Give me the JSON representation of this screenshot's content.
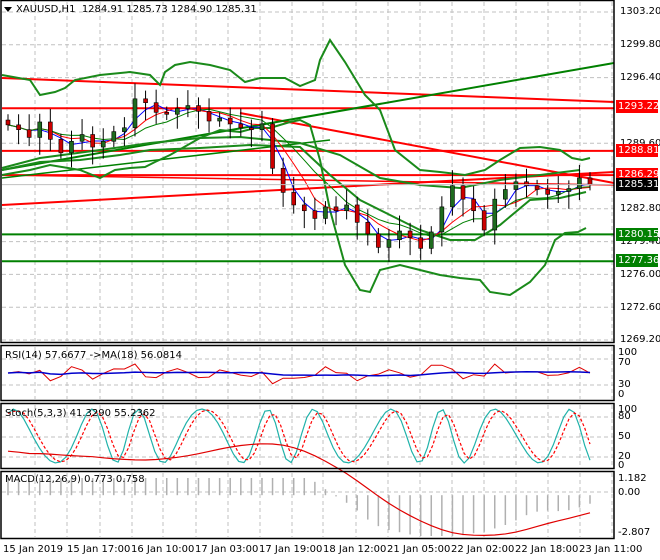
{
  "header": {
    "symbol": "XAUUSD,H1",
    "ohlc": "1284.91 1285.73 1284.90 1285.31",
    "dropdown_icon": "triangle-down-icon"
  },
  "colors": {
    "background": "#ffffff",
    "grid": "#c0c0c0",
    "bull_candle": "#1e6b1e",
    "bear_candle": "#cc0000",
    "resistance": "#ff0000",
    "support": "#008000",
    "bollinger": "#1a8a1a",
    "ma_fast": "#0000ff",
    "ma_mid": "#ff0000",
    "ma_slow": "#008000",
    "rsi_line": "#e00000",
    "rsi_ma": "#0000cc",
    "stoch_main": "#20b2aa",
    "stoch_signal": "#ff0000",
    "macd_hist": "#b0b0b0",
    "macd_signal": "#e00000"
  },
  "price_axis": {
    "labels": [
      "1303.20",
      "1299.80",
      "1296.40",
      "1289.60",
      "1282.80",
      "1279.40",
      "1276.00",
      "1272.60",
      "1269.20"
    ]
  },
  "price_boxes": [
    {
      "label": "1293.22",
      "color": "#ff0000",
      "name": "resistance-1293"
    },
    {
      "label": "1288.81",
      "color": "#ff0000",
      "name": "resistance-1288"
    },
    {
      "label": "1286.29",
      "color": "#ff0000",
      "name": "resistance-1286"
    },
    {
      "label": "1285.31",
      "color": "#000000",
      "name": "current-price"
    },
    {
      "label": "1280.15",
      "color": "#008000",
      "name": "support-1280"
    },
    {
      "label": "1277.36",
      "color": "#008000",
      "name": "support-1277"
    }
  ],
  "rsi": {
    "label": "RSI(14) 57.6677  ->MA(18) 56.0814",
    "axis": [
      "100",
      "70",
      "30",
      "0"
    ]
  },
  "stoch": {
    "label": "Stoch(5,3,3) 41.3290 55.2362",
    "axis": [
      "100",
      "80",
      "50",
      "20",
      "0"
    ]
  },
  "macd": {
    "label": "MACD(12,26,9) 0.773 0.758",
    "axis": [
      "1.182",
      "0.00",
      "-2.807"
    ]
  },
  "time_axis": {
    "labels": [
      "15 Jan 2019",
      "15 Jan 17:00",
      "16 Jan 10:00",
      "17 Jan 03:00",
      "17 Jan 19:00",
      "18 Jan 12:00",
      "21 Jan 05:00",
      "22 Jan 02:00",
      "22 Jan 18:00",
      "23 Jan 11:00"
    ]
  },
  "chart_data": [
    {
      "type": "candlestick",
      "title": "XAUUSD,H1",
      "last_ohlc": {
        "open": 1284.91,
        "high": 1285.73,
        "low": 1284.9,
        "close": 1285.31
      },
      "ylim": [
        1269.2,
        1303.2
      ],
      "y_ticks": [
        1303.2,
        1299.8,
        1296.4,
        1289.6,
        1282.8,
        1279.4,
        1276.0,
        1272.6,
        1269.2
      ],
      "x_ticks": [
        "15 Jan 2019",
        "15 Jan 17:00",
        "16 Jan 10:00",
        "17 Jan 03:00",
        "17 Jan 19:00",
        "18 Jan 12:00",
        "21 Jan 05:00",
        "22 Jan 02:00",
        "22 Jan 18:00",
        "23 Jan 11:00"
      ],
      "close_series": [
        1291.5,
        1291.0,
        1290.2,
        1291.8,
        1290.0,
        1288.6,
        1289.8,
        1290.5,
        1289.2,
        1289.8,
        1290.8,
        1291.2,
        1294.2,
        1293.8,
        1292.8,
        1292.6,
        1293.2,
        1293.5,
        1292.9,
        1291.9,
        1292.2,
        1291.6,
        1291.2,
        1291.0,
        1291.6,
        1287.0,
        1284.5,
        1283.2,
        1282.6,
        1281.8,
        1283.0,
        1282.6,
        1283.2,
        1281.4,
        1280.2,
        1278.8,
        1279.6,
        1280.5,
        1279.8,
        1278.7,
        1280.4,
        1283.0,
        1285.2,
        1283.8,
        1282.6,
        1280.6,
        1283.8,
        1284.8,
        1285.6,
        1285.2,
        1284.8,
        1284.3,
        1284.6,
        1284.9,
        1286.0,
        1285.31
      ],
      "horizontal_levels": {
        "resistance": [
          1293.22,
          1288.81,
          1286.29
        ],
        "support": [
          1280.15,
          1277.36
        ]
      },
      "current_price": 1285.31,
      "indicators": [
        "Bollinger Bands",
        "Moving Averages (3)",
        "Trend lines"
      ]
    },
    {
      "type": "line",
      "title": "RSI(14) 57.6677 ->MA(18) 56.0814",
      "ylim": [
        0,
        100
      ],
      "y_ticks": [
        100,
        70,
        30,
        0
      ],
      "series": [
        {
          "name": "RSI(14)",
          "last": 57.6677
        },
        {
          "name": "MA(18)",
          "last": 56.0814
        }
      ]
    },
    {
      "type": "line",
      "title": "Stoch(5,3,3) 41.3290 55.2362",
      "ylim": [
        0,
        100
      ],
      "y_ticks": [
        100,
        80,
        50,
        20,
        0
      ],
      "series": [
        {
          "name": "%K",
          "last": 41.329
        },
        {
          "name": "%D",
          "last": 55.2362
        }
      ]
    },
    {
      "type": "bar",
      "title": "MACD(12,26,9) 0.773 0.758",
      "ylim": [
        -2.807,
        1.182
      ],
      "y_ticks": [
        1.182,
        0.0,
        -2.807
      ],
      "series": [
        {
          "name": "MACD",
          "last": 0.773
        },
        {
          "name": "Signal",
          "last": 0.758
        }
      ]
    }
  ]
}
